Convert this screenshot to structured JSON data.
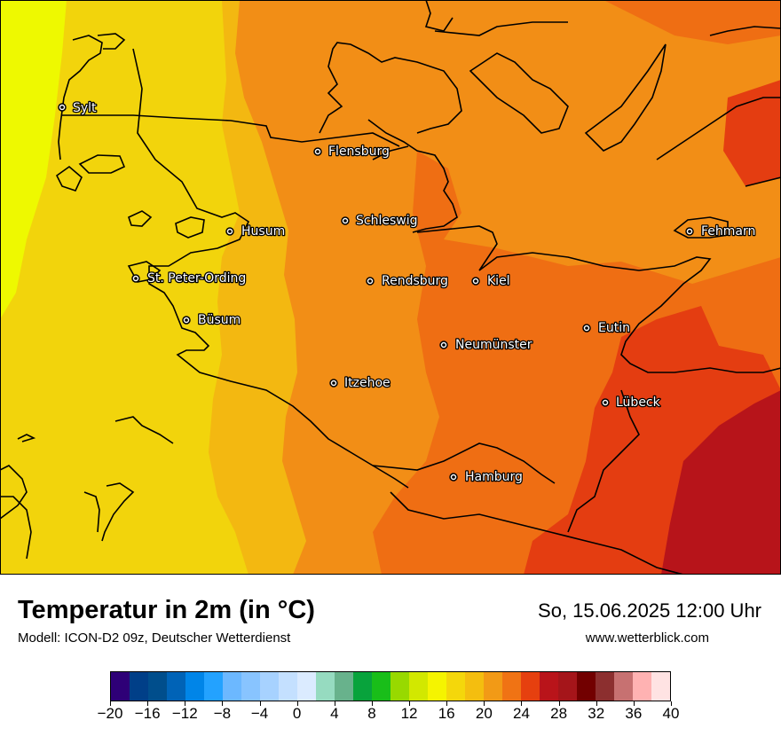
{
  "title": "Temperatur in 2m (in °C)",
  "subtitle": "Modell: ICON-D2 09z, Deutscher Wetterdienst",
  "datetime": "So, 15.06.2025 12:00 Uhr",
  "website": "www.wetterblick.com",
  "colors": {
    "cold_west": "#eef900",
    "temp_17": "#f2d40c",
    "temp_19": "#f3b811",
    "temp_21": "#f28e16",
    "temp_23": "#ef6e13",
    "temp_25": "#e43d11",
    "temp_27": "#b7141a"
  },
  "cities": [
    {
      "name": "Sylt",
      "id": "sylt"
    },
    {
      "name": "Flensburg",
      "id": "flensburg"
    },
    {
      "name": "Schleswig",
      "id": "schleswig"
    },
    {
      "name": "Husum",
      "id": "husum"
    },
    {
      "name": "Fehmarn",
      "id": "fehmarn"
    },
    {
      "name": "St. Peter-Ording",
      "id": "st-peter-ording"
    },
    {
      "name": "Rendsburg",
      "id": "rendsburg"
    },
    {
      "name": "Kiel",
      "id": "kiel"
    },
    {
      "name": "Büsum",
      "id": "buesum"
    },
    {
      "name": "Eutin",
      "id": "eutin"
    },
    {
      "name": "Neumünster",
      "id": "neumuenster"
    },
    {
      "name": "Itzehoe",
      "id": "itzehoe"
    },
    {
      "name": "Lübeck",
      "id": "luebeck"
    },
    {
      "name": "Hamburg",
      "id": "hamburg"
    }
  ],
  "colorbar": {
    "colors": [
      "#2e0077",
      "#003f88",
      "#004e8c",
      "#0063b7",
      "#0085e8",
      "#23a2ff",
      "#6cb8ff",
      "#88c4ff",
      "#a7d2ff",
      "#c4e0ff",
      "#dbebff",
      "#96dbc0",
      "#68b28c",
      "#08a33c",
      "#19be19",
      "#98d900",
      "#d2e800",
      "#f5f400",
      "#f4d70b",
      "#f4be0f",
      "#f29a16",
      "#f07314",
      "#e6400f",
      "#b9141a",
      "#a5151a",
      "#720000",
      "#8c2f2f",
      "#c77171",
      "#ffb2b2",
      "#ffe3e3"
    ],
    "tick_labels": [
      "−20",
      "−16",
      "−12",
      "−8",
      "−4",
      "0",
      "4",
      "8",
      "12",
      "16",
      "20",
      "24",
      "28",
      "32",
      "36",
      "40"
    ],
    "min": -20,
    "max": 40
  }
}
